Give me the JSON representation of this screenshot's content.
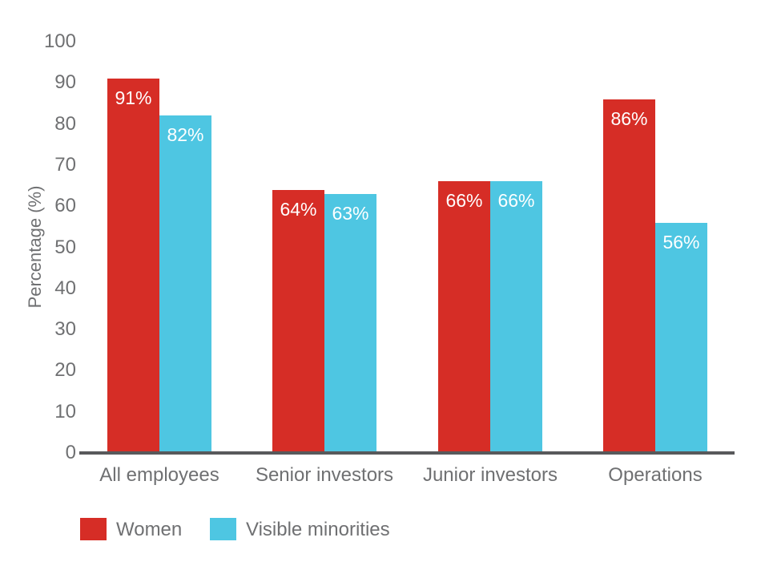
{
  "chart_data": {
    "type": "bar",
    "categories": [
      "All employees",
      "Senior investors",
      "Junior investors",
      "Operations"
    ],
    "series": [
      {
        "name": "Women",
        "color": "#d62d26",
        "values": [
          91,
          64,
          66,
          86
        ]
      },
      {
        "name": "Visible minorities",
        "color": "#4ec6e2",
        "values": [
          82,
          63,
          66,
          56
        ]
      }
    ],
    "value_label_suffix": "%",
    "title": "",
    "xlabel": "",
    "ylabel": "Percentage (%)",
    "ylim": [
      0,
      100
    ],
    "yticks": [
      0,
      10,
      20,
      30,
      40,
      50,
      60,
      70,
      80,
      90,
      100
    ],
    "grid": false,
    "legend_position": "bottom",
    "colors": {
      "text": "#6f7072",
      "axis_line": "#58595b",
      "bar_value_label": "#ffffff",
      "background": "#ffffff"
    }
  }
}
